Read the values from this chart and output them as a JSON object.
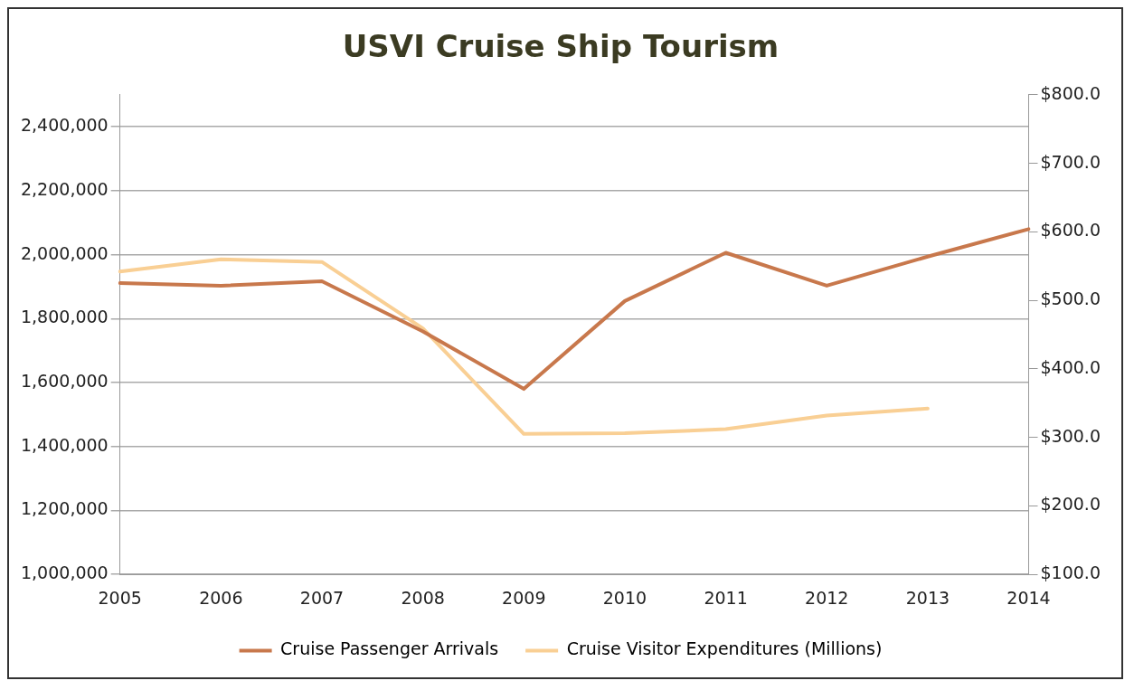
{
  "chart_data": {
    "type": "line",
    "title": "USVI Cruise Ship Tourism",
    "categories": [
      "2005",
      "2006",
      "2007",
      "2008",
      "2009",
      "2010",
      "2011",
      "2012",
      "2013",
      "2014"
    ],
    "series": [
      {
        "name": "Cruise Passenger Arrivals",
        "color": "#c8784c",
        "values": [
          1911000,
          1903000,
          1917000,
          1760000,
          1580000,
          1855000,
          2006000,
          1903000,
          1994000,
          2080000
        ]
      },
      {
        "name": "Cruise Visitor Expenditures (Millions)",
        "color": "#f9cf94",
        "axis": "y2",
        "values": [
          542,
          560,
          556,
          459,
          305,
          306,
          312,
          332,
          342,
          null
        ]
      }
    ],
    "ylim": [
      1000000,
      2500000
    ],
    "yticks": [
      {
        "value": 1000000,
        "label": "1,000,000"
      },
      {
        "value": 1200000,
        "label": "1,200,000"
      },
      {
        "value": 1400000,
        "label": "1,400,000"
      },
      {
        "value": 1600000,
        "label": "1,600,000"
      },
      {
        "value": 1800000,
        "label": "1,800,000"
      },
      {
        "value": 2000000,
        "label": "2,000,000"
      },
      {
        "value": 2200000,
        "label": "2,200,000"
      },
      {
        "value": 2400000,
        "label": "2,400,000"
      },
      {
        "value": 2500000,
        "label": null
      }
    ],
    "y2lim": [
      100,
      800
    ],
    "y2ticks": [
      {
        "value": 100,
        "label": "$100.0"
      },
      {
        "value": 200,
        "label": "$200.0"
      },
      {
        "value": 300,
        "label": "$300.0"
      },
      {
        "value": 400,
        "label": "$400.0"
      },
      {
        "value": 500,
        "label": "$500.0"
      },
      {
        "value": 600,
        "label": "$600.0"
      },
      {
        "value": 700,
        "label": "$700.0"
      },
      {
        "value": 800,
        "label": "$800.0"
      }
    ],
    "grid": "y",
    "legend": "bottom",
    "marker": "none",
    "line_style": "solid"
  }
}
